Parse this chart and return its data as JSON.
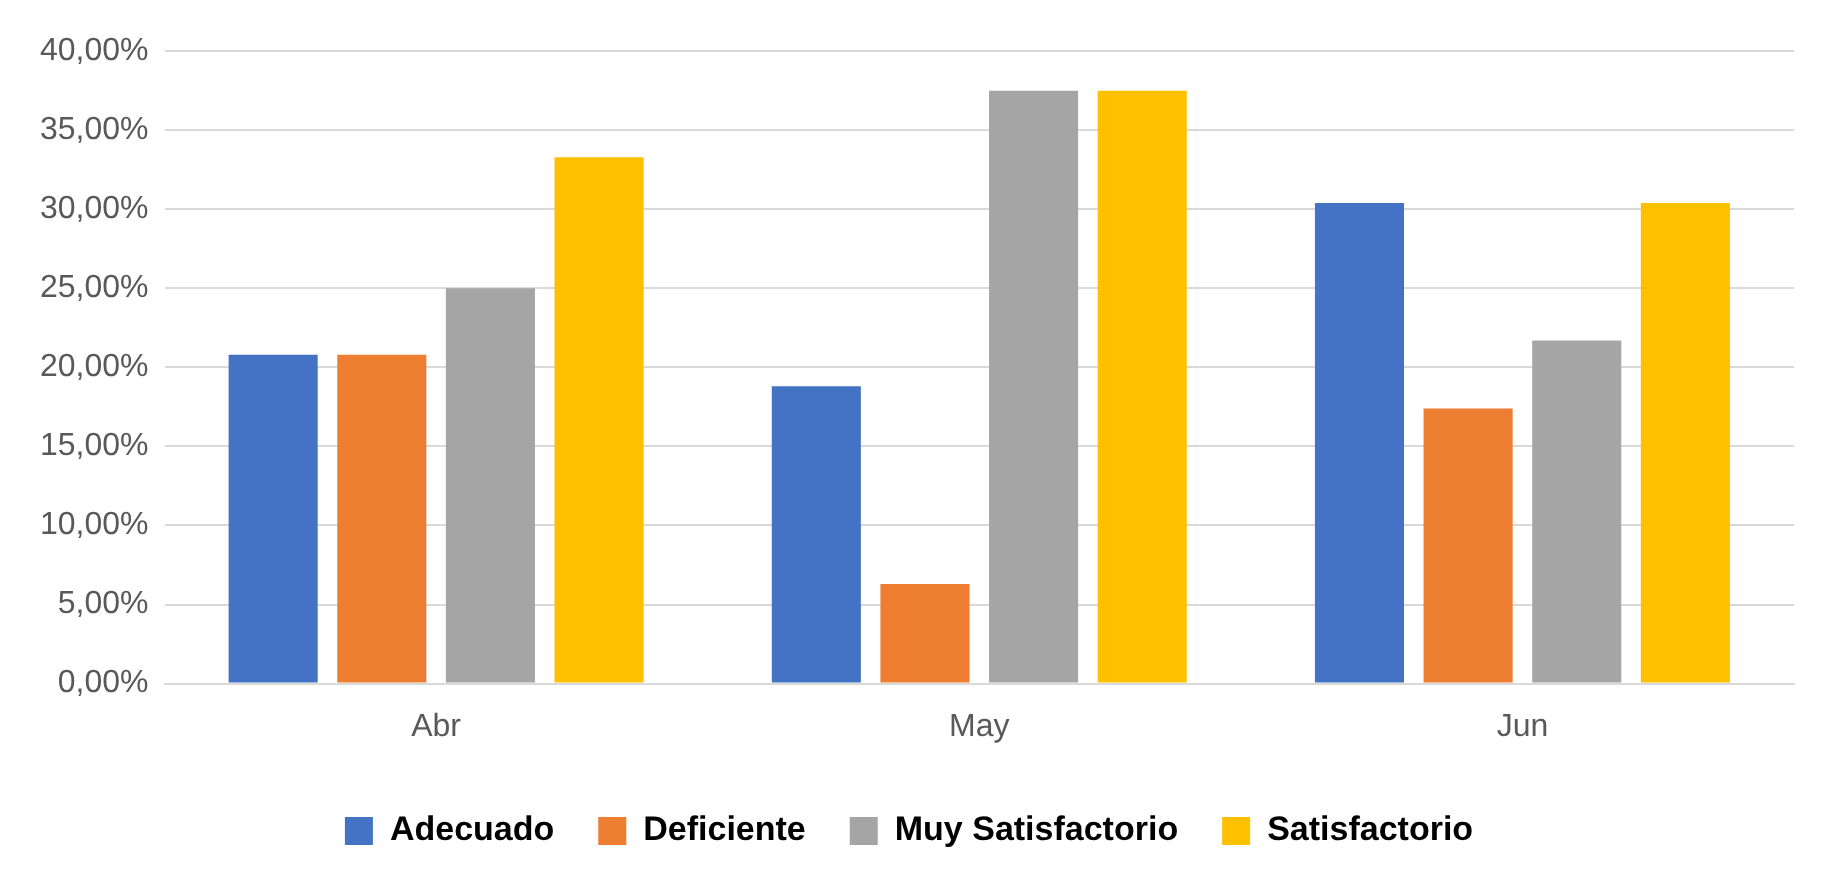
{
  "chart_data": {
    "type": "bar",
    "categories": [
      "Abr",
      "May",
      "Jun"
    ],
    "series": [
      {
        "name": "Adecuado",
        "color": "#4472c4",
        "values": [
          20.8,
          18.8,
          30.4
        ]
      },
      {
        "name": "Deficiente",
        "color": "#ed7d31",
        "values": [
          20.8,
          6.3,
          17.4
        ]
      },
      {
        "name": "Muy Satisfactorio",
        "color": "#a5a5a5",
        "values": [
          25,
          37.5,
          21.7
        ]
      },
      {
        "name": "Satisfactorio",
        "color": "#ffc000",
        "values": [
          33.3,
          37.5,
          30.4
        ]
      }
    ],
    "ylim": [
      0,
      40
    ],
    "yticks": [
      {
        "value": 0,
        "label": "0,00%"
      },
      {
        "value": 5,
        "label": "5,00%"
      },
      {
        "value": 10,
        "label": "10,00%"
      },
      {
        "value": 15,
        "label": "15,00%"
      },
      {
        "value": 20,
        "label": "20,00%"
      },
      {
        "value": 25,
        "label": "25,00%"
      },
      {
        "value": 30,
        "label": "30,00%"
      },
      {
        "value": 35,
        "label": "35,00%"
      },
      {
        "value": 40,
        "label": "40,00%"
      }
    ],
    "grid": "y",
    "legend": "bottom"
  }
}
